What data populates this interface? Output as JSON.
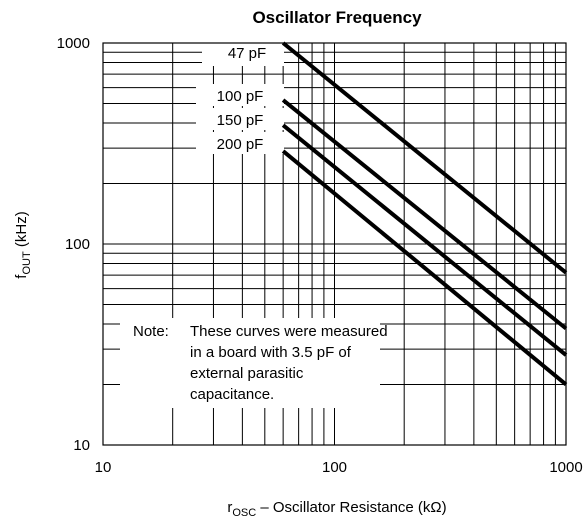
{
  "chart_data": {
    "type": "line",
    "title": "Oscillator Frequency",
    "xlabel": {
      "main": "r",
      "sub": "OSC",
      "rest": " – Oscillator Resistance (kΩ)"
    },
    "ylabel": {
      "main": "f",
      "sub": "OUT",
      "rest": " (kHz)"
    },
    "xscale": "log",
    "yscale": "log",
    "xlim": [
      10,
      1000
    ],
    "ylim": [
      10,
      1000
    ],
    "xticks": [
      {
        "value": 10,
        "label": "10"
      },
      {
        "value": 100,
        "label": "100"
      },
      {
        "value": 1000,
        "label": "1000"
      }
    ],
    "yticks": [
      {
        "value": 10,
        "label": "10"
      },
      {
        "value": 100,
        "label": "100"
      },
      {
        "value": 1000,
        "label": "1000"
      }
    ],
    "grid": true,
    "series": [
      {
        "name": "47 pF",
        "x": [
          60,
          1000
        ],
        "y": [
          1000,
          72
        ]
      },
      {
        "name": "100 pF",
        "x": [
          60,
          1000
        ],
        "y": [
          520,
          38
        ]
      },
      {
        "name": "150 pF",
        "x": [
          60,
          1000
        ],
        "y": [
          390,
          28
        ]
      },
      {
        "name": "200 pF",
        "x": [
          60,
          1000
        ],
        "y": [
          290,
          20
        ]
      }
    ],
    "annotation": {
      "lead": "Note:",
      "lines": [
        "These curves were measured",
        "in a board with 3.5 pF of",
        "external parasitic",
        "capacitance."
      ]
    }
  }
}
